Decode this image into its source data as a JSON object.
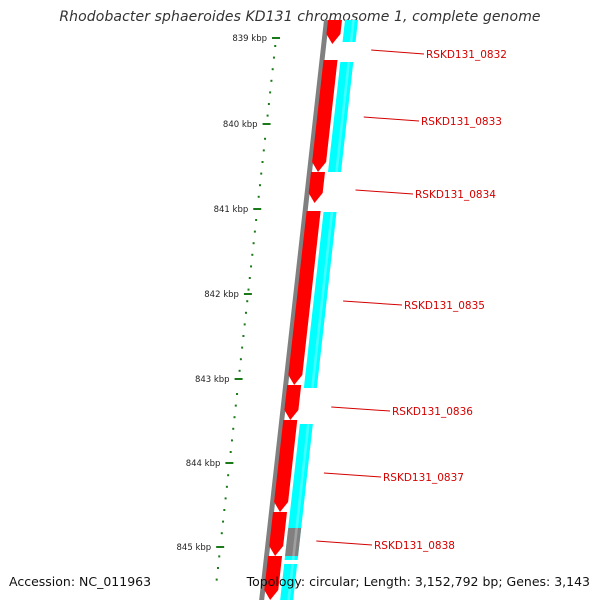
{
  "title": "Rhodobacter sphaeroides KD131 chromosome 1, complete genome",
  "footer": {
    "accession": "Accession: NC_011963",
    "topology": "Topology: circular; Length: 3,152,792 bp; Genes: 3,143"
  },
  "colors": {
    "forward_gene": "#ff0000",
    "reverse_gene": "#00ffff",
    "backbone": "#808080",
    "tick": "#1a7a1a",
    "label": "#d40000"
  },
  "scale": {
    "unit": "kbp",
    "ticks": [
      "839 kbp",
      "840 kbp",
      "841 kbp",
      "842 kbp",
      "843 kbp",
      "844 kbp",
      "845 kbp"
    ]
  },
  "genes": [
    "RSKD131_0832",
    "RSKD131_0833",
    "RSKD131_0834",
    "RSKD131_0835",
    "RSKD131_0836",
    "RSKD131_0837",
    "RSKD131_0838"
  ]
}
